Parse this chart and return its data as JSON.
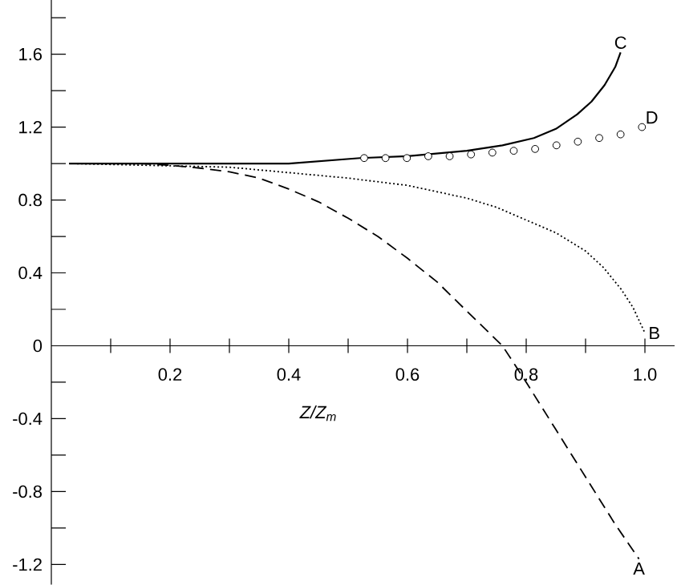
{
  "chart_data": {
    "type": "line",
    "xlabel": "Z/Z$_{m}$",
    "xlim": [
      0,
      1.05
    ],
    "ylim": [
      -1.31,
      1.9
    ],
    "xticks": [
      {
        "value": 0.1,
        "label": null
      },
      0.2,
      {
        "value": 0.3,
        "label": null
      },
      0.4,
      {
        "value": 0.5,
        "label": null
      },
      0.6,
      {
        "value": 0.7,
        "label": null
      },
      0.8,
      {
        "value": 0.9,
        "label": null
      },
      {
        "value": 1.0,
        "label": "1.0"
      }
    ],
    "yticks": [
      -1.2,
      {
        "value": -1.0,
        "label": null
      },
      -0.8,
      {
        "value": -0.6,
        "label": null
      },
      -0.4,
      {
        "value": -0.2,
        "label": null
      },
      0,
      {
        "value": 0.2,
        "label": null
      },
      0.4,
      {
        "value": 0.6,
        "label": null
      },
      0.8,
      {
        "value": 1.0,
        "label": null
      },
      1.2,
      {
        "value": 1.4,
        "label": null
      },
      1.6,
      {
        "value": 1.8,
        "label": null
      }
    ],
    "grid": false,
    "series": [
      {
        "color": "#000000",
        "line_style": "dashed",
        "x": [
          0.03,
          0.15,
          0.2,
          0.25,
          0.3,
          0.35,
          0.4,
          0.45,
          0.5,
          0.55,
          0.6,
          0.65,
          0.7,
          0.76,
          0.8,
          0.85,
          0.9,
          0.95,
          0.99
        ],
        "values": [
          1.0,
          1.0,
          0.99,
          0.975,
          0.955,
          0.92,
          0.86,
          0.79,
          0.7,
          0.6,
          0.48,
          0.35,
          0.19,
          0.0,
          -0.2,
          -0.46,
          -0.72,
          -0.98,
          -1.17
        ]
      },
      {
        "color": "#000000",
        "line_style": "dotted",
        "x": [
          0.03,
          0.3,
          0.4,
          0.5,
          0.6,
          0.7,
          0.75,
          0.8,
          0.85,
          0.9,
          0.93,
          0.96,
          0.98,
          1.0
        ],
        "values": [
          1.0,
          0.98,
          0.95,
          0.92,
          0.88,
          0.81,
          0.76,
          0.69,
          0.62,
          0.52,
          0.43,
          0.31,
          0.21,
          0.07
        ]
      },
      {
        "color": "#000000",
        "line_style": "solid",
        "x": [
          0.03,
          0.4,
          0.52,
          0.6,
          0.7,
          0.76,
          0.813,
          0.85,
          0.886,
          0.91,
          0.932,
          0.95,
          0.959
        ],
        "values": [
          1.0,
          1.0,
          1.03,
          1.04,
          1.07,
          1.1,
          1.14,
          1.19,
          1.27,
          1.34,
          1.43,
          1.53,
          1.61
        ]
      },
      {
        "type": "scatter",
        "marker": "circle",
        "color": "#000000",
        "x": [
          0.527,
          0.563,
          0.599,
          0.635,
          0.671,
          0.707,
          0.743,
          0.779,
          0.815,
          0.851,
          0.887,
          0.923,
          0.959,
          0.995
        ],
        "values": [
          1.03,
          1.03,
          1.03,
          1.04,
          1.04,
          1.05,
          1.06,
          1.07,
          1.08,
          1.1,
          1.12,
          1.14,
          1.16,
          1.2
        ]
      }
    ],
    "annotations": [
      {
        "text": "A",
        "x": 0.99,
        "y": -1.17
      },
      {
        "text": "B",
        "x": 1.0,
        "y": 0.07
      },
      {
        "text": "C",
        "x": 0.959,
        "y": 1.61
      },
      {
        "text": "D",
        "x": 0.995,
        "y": 1.2
      }
    ]
  }
}
